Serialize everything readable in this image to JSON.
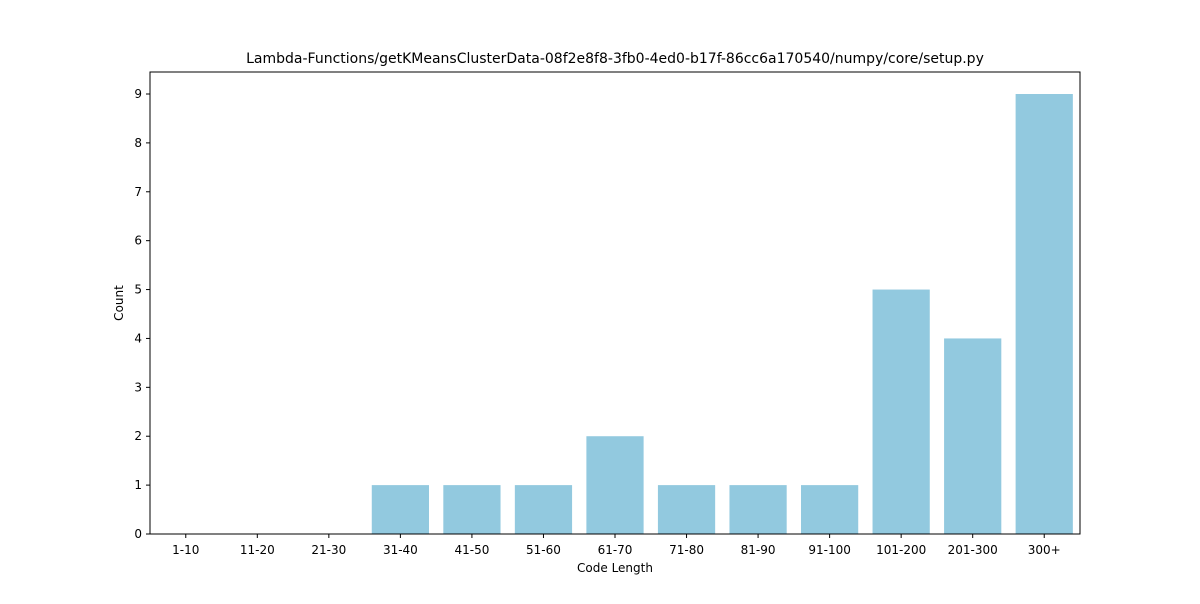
{
  "chart_data": {
    "type": "bar",
    "title": "Lambda-Functions/getKMeansClusterData-08f2e8f8-3fb0-4ed0-b17f-86cc6a170540/numpy/core/setup.py",
    "xlabel": "Code Length",
    "ylabel": "Count",
    "categories": [
      "1-10",
      "11-20",
      "21-30",
      "31-40",
      "41-50",
      "51-60",
      "61-70",
      "71-80",
      "81-90",
      "91-100",
      "101-200",
      "201-300",
      "300+"
    ],
    "values": [
      0,
      0,
      0,
      1,
      1,
      1,
      2,
      1,
      1,
      1,
      5,
      4,
      9
    ],
    "ylim": [
      0,
      9.45
    ],
    "yticks": [
      0,
      1,
      2,
      3,
      4,
      5,
      6,
      7,
      8,
      9
    ],
    "grid": false,
    "bar_color": "#92c9df",
    "axis_color": "#000000"
  }
}
